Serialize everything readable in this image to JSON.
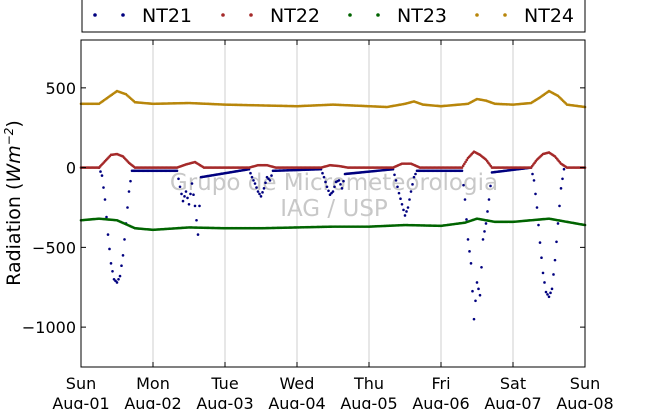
{
  "chart_data": {
    "type": "scatter",
    "title": "",
    "xlabel": "",
    "ylabel": "Radiation",
    "ylabel_unit_base": "Wm",
    "ylabel_unit_exp": "−2",
    "ylim": [
      -1250,
      800
    ],
    "xlim": [
      "2015-08-01",
      "2015-08-08"
    ],
    "yticks": [
      500,
      0,
      -500,
      -1000
    ],
    "ytick_labels": [
      "500",
      "0",
      "−500",
      "−1000"
    ],
    "xticks": [
      {
        "date": "2015-08-01",
        "day": "Sun",
        "date_label": "Aug-01"
      },
      {
        "date": "2015-08-02",
        "day": "Mon",
        "date_label": "Aug-02"
      },
      {
        "date": "2015-08-03",
        "day": "Tue",
        "date_label": "Aug-03"
      },
      {
        "date": "2015-08-04",
        "day": "Wed",
        "date_label": "Aug-04"
      },
      {
        "date": "2015-08-05",
        "day": "Thu",
        "date_label": "Aug-05"
      },
      {
        "date": "2015-08-06",
        "day": "Fri",
        "date_label": "Aug-06"
      },
      {
        "date": "2015-08-07",
        "day": "Sat",
        "date_label": "Aug-07"
      },
      {
        "date": "2015-08-08",
        "day": "Sun",
        "date_label": "Aug-08"
      }
    ],
    "grid": "vertical",
    "legend_position": "top",
    "watermark": [
      "Grupo de Micrometeorologia",
      "IAG / USP"
    ],
    "series": [
      {
        "name": "NT21",
        "color": "#00007f",
        "points": [
          [
            "2015-08-01T06:00",
            0
          ],
          [
            "2015-08-01T07:00",
            -50
          ],
          [
            "2015-08-01T08:00",
            -200
          ],
          [
            "2015-08-01T09:00",
            -420
          ],
          [
            "2015-08-01T10:00",
            -600
          ],
          [
            "2015-08-01T11:00",
            -700
          ],
          [
            "2015-08-01T12:00",
            -720
          ],
          [
            "2015-08-01T13:00",
            -680
          ],
          [
            "2015-08-01T14:00",
            -550
          ],
          [
            "2015-08-01T15:00",
            -350
          ],
          [
            "2015-08-01T16:00",
            -150
          ],
          [
            "2015-08-01T17:00",
            -20
          ],
          [
            "2015-08-02T08:00",
            -20
          ],
          [
            "2015-08-02T09:00",
            -120
          ],
          [
            "2015-08-02T10:00",
            -210
          ],
          [
            "2015-08-02T11:00",
            -150
          ],
          [
            "2015-08-02T12:00",
            -230
          ],
          [
            "2015-08-02T13:00",
            -100
          ],
          [
            "2015-08-02T14:00",
            -240
          ],
          [
            "2015-08-02T15:00",
            -420
          ],
          [
            "2015-08-02T16:00",
            -60
          ],
          [
            "2015-08-03T08:00",
            -10
          ],
          [
            "2015-08-03T09:00",
            -60
          ],
          [
            "2015-08-03T10:00",
            -100
          ],
          [
            "2015-08-03T11:00",
            -150
          ],
          [
            "2015-08-03T12:00",
            -180
          ],
          [
            "2015-08-03T13:00",
            -130
          ],
          [
            "2015-08-03T14:00",
            -60
          ],
          [
            "2015-08-03T15:00",
            -80
          ],
          [
            "2015-08-03T16:00",
            -20
          ],
          [
            "2015-08-04T08:00",
            -10
          ],
          [
            "2015-08-04T09:00",
            -60
          ],
          [
            "2015-08-04T10:00",
            -120
          ],
          [
            "2015-08-04T11:00",
            -170
          ],
          [
            "2015-08-04T12:00",
            -150
          ],
          [
            "2015-08-04T13:00",
            -90
          ],
          [
            "2015-08-04T14:00",
            -80
          ],
          [
            "2015-08-04T15:00",
            -130
          ],
          [
            "2015-08-04T16:00",
            -40
          ],
          [
            "2015-08-05T08:00",
            -10
          ],
          [
            "2015-08-05T09:00",
            -80
          ],
          [
            "2015-08-05T10:00",
            -160
          ],
          [
            "2015-08-05T11:00",
            -230
          ],
          [
            "2015-08-05T12:00",
            -300
          ],
          [
            "2015-08-05T13:00",
            -250
          ],
          [
            "2015-08-05T14:00",
            -150
          ],
          [
            "2015-08-05T15:00",
            -60
          ],
          [
            "2015-08-05T16:00",
            -20
          ],
          [
            "2015-08-06T07:00",
            -20
          ],
          [
            "2015-08-06T08:00",
            -200
          ],
          [
            "2015-08-06T09:00",
            -450
          ],
          [
            "2015-08-06T10:00",
            -600
          ],
          [
            "2015-08-06T11:00",
            -950
          ],
          [
            "2015-08-06T12:00",
            -720
          ],
          [
            "2015-08-06T13:00",
            -800
          ],
          [
            "2015-08-06T14:00",
            -450
          ],
          [
            "2015-08-06T15:00",
            -350
          ],
          [
            "2015-08-06T16:00",
            -200
          ],
          [
            "2015-08-06T17:00",
            -30
          ],
          [
            "2015-08-07T06:00",
            0
          ],
          [
            "2015-08-07T07:00",
            -80
          ],
          [
            "2015-08-07T08:00",
            -250
          ],
          [
            "2015-08-07T09:00",
            -470
          ],
          [
            "2015-08-07T10:00",
            -660
          ],
          [
            "2015-08-07T11:00",
            -780
          ],
          [
            "2015-08-07T12:00",
            -810
          ],
          [
            "2015-08-07T13:00",
            -760
          ],
          [
            "2015-08-07T14:00",
            -580
          ],
          [
            "2015-08-07T15:00",
            -350
          ],
          [
            "2015-08-07T16:00",
            -130
          ],
          [
            "2015-08-07T17:00",
            -10
          ]
        ]
      },
      {
        "name": "NT22",
        "color": "#a52a2a",
        "points": [
          [
            "2015-08-01T00:00",
            0
          ],
          [
            "2015-08-01T06:00",
            0
          ],
          [
            "2015-08-01T08:00",
            40
          ],
          [
            "2015-08-01T10:00",
            80
          ],
          [
            "2015-08-01T12:00",
            85
          ],
          [
            "2015-08-01T14:00",
            70
          ],
          [
            "2015-08-01T16:00",
            30
          ],
          [
            "2015-08-01T18:00",
            0
          ],
          [
            "2015-08-02T08:00",
            0
          ],
          [
            "2015-08-02T11:00",
            20
          ],
          [
            "2015-08-02T14:00",
            35
          ],
          [
            "2015-08-02T17:00",
            0
          ],
          [
            "2015-08-03T08:00",
            0
          ],
          [
            "2015-08-03T11:00",
            15
          ],
          [
            "2015-08-03T14:00",
            15
          ],
          [
            "2015-08-03T17:00",
            0
          ],
          [
            "2015-08-04T08:00",
            0
          ],
          [
            "2015-08-04T11:00",
            15
          ],
          [
            "2015-08-04T14:00",
            10
          ],
          [
            "2015-08-04T17:00",
            0
          ],
          [
            "2015-08-05T08:00",
            0
          ],
          [
            "2015-08-05T11:00",
            25
          ],
          [
            "2015-08-05T14:00",
            25
          ],
          [
            "2015-08-05T17:00",
            0
          ],
          [
            "2015-08-06T07:00",
            0
          ],
          [
            "2015-08-06T09:00",
            60
          ],
          [
            "2015-08-06T11:00",
            100
          ],
          [
            "2015-08-06T13:00",
            80
          ],
          [
            "2015-08-06T15:00",
            50
          ],
          [
            "2015-08-06T17:00",
            0
          ],
          [
            "2015-08-07T06:00",
            0
          ],
          [
            "2015-08-07T08:00",
            50
          ],
          [
            "2015-08-07T10:00",
            85
          ],
          [
            "2015-08-07T12:00",
            95
          ],
          [
            "2015-08-07T14:00",
            70
          ],
          [
            "2015-08-07T16:00",
            25
          ],
          [
            "2015-08-07T18:00",
            0
          ],
          [
            "2015-08-08T00:00",
            0
          ]
        ]
      },
      {
        "name": "NT23",
        "color": "#006400",
        "points": [
          [
            "2015-08-01T00:00",
            -330
          ],
          [
            "2015-08-01T06:00",
            -320
          ],
          [
            "2015-08-01T12:00",
            -330
          ],
          [
            "2015-08-01T18:00",
            -380
          ],
          [
            "2015-08-02T00:00",
            -390
          ],
          [
            "2015-08-02T12:00",
            -375
          ],
          [
            "2015-08-03T00:00",
            -380
          ],
          [
            "2015-08-03T12:00",
            -380
          ],
          [
            "2015-08-04T00:00",
            -375
          ],
          [
            "2015-08-04T12:00",
            -370
          ],
          [
            "2015-08-05T00:00",
            -370
          ],
          [
            "2015-08-05T12:00",
            -360
          ],
          [
            "2015-08-06T00:00",
            -365
          ],
          [
            "2015-08-06T08:00",
            -345
          ],
          [
            "2015-08-06T12:00",
            -320
          ],
          [
            "2015-08-06T18:00",
            -340
          ],
          [
            "2015-08-07T00:00",
            -340
          ],
          [
            "2015-08-07T12:00",
            -320
          ],
          [
            "2015-08-07T18:00",
            -340
          ],
          [
            "2015-08-08T00:00",
            -360
          ]
        ]
      },
      {
        "name": "NT24",
        "color": "#b8860b",
        "points": [
          [
            "2015-08-01T00:00",
            400
          ],
          [
            "2015-08-01T06:00",
            400
          ],
          [
            "2015-08-01T09:00",
            440
          ],
          [
            "2015-08-01T12:00",
            480
          ],
          [
            "2015-08-01T15:00",
            460
          ],
          [
            "2015-08-01T18:00",
            410
          ],
          [
            "2015-08-02T00:00",
            400
          ],
          [
            "2015-08-02T12:00",
            405
          ],
          [
            "2015-08-03T00:00",
            395
          ],
          [
            "2015-08-03T12:00",
            390
          ],
          [
            "2015-08-04T00:00",
            385
          ],
          [
            "2015-08-04T12:00",
            395
          ],
          [
            "2015-08-05T00:00",
            385
          ],
          [
            "2015-08-05T06:00",
            380
          ],
          [
            "2015-08-05T12:00",
            400
          ],
          [
            "2015-08-05T15:00",
            415
          ],
          [
            "2015-08-05T18:00",
            395
          ],
          [
            "2015-08-06T00:00",
            385
          ],
          [
            "2015-08-06T09:00",
            400
          ],
          [
            "2015-08-06T12:00",
            430
          ],
          [
            "2015-08-06T15:00",
            420
          ],
          [
            "2015-08-06T18:00",
            400
          ],
          [
            "2015-08-07T00:00",
            395
          ],
          [
            "2015-08-07T06:00",
            405
          ],
          [
            "2015-08-07T09:00",
            440
          ],
          [
            "2015-08-07T12:00",
            480
          ],
          [
            "2015-08-07T15:00",
            450
          ],
          [
            "2015-08-07T18:00",
            395
          ],
          [
            "2015-08-08T00:00",
            380
          ]
        ]
      }
    ]
  }
}
